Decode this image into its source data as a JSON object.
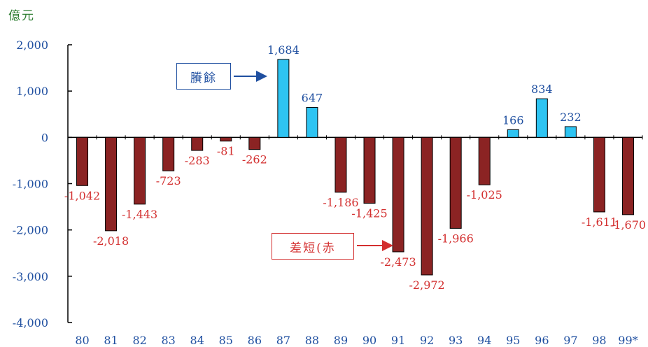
{
  "unit_label": "億元",
  "colors": {
    "positive_bar": "#2ec4f2",
    "negative_bar": "#8b2323",
    "positive_label": "#1f4fa0",
    "negative_label": "#d32f2f",
    "axis_tick": "#1f4fa0"
  },
  "callouts": {
    "surplus": "賸餘",
    "deficit": "差短(赤"
  },
  "chart_data": {
    "type": "bar",
    "title": "",
    "xlabel": "",
    "ylabel": "億元",
    "ylim": [
      -4000,
      2000
    ],
    "yticks": [
      2000,
      1000,
      0,
      -1000,
      -2000,
      -3000,
      -4000
    ],
    "ytick_labels": [
      "2,000",
      "1,000",
      "0",
      "-1,000",
      "-2,000",
      "-3,000",
      "-4,000"
    ],
    "grid": false,
    "categories": [
      "80",
      "81",
      "82",
      "83",
      "84",
      "85",
      "86",
      "87",
      "88",
      "89",
      "90",
      "91",
      "92",
      "93",
      "94",
      "95",
      "96",
      "97",
      "98",
      "99*"
    ],
    "values": [
      -1042,
      -2018,
      -1443,
      -723,
      -283,
      -81,
      -262,
      1684,
      647,
      -1186,
      -1425,
      -2473,
      -2972,
      -1966,
      -1025,
      166,
      834,
      232,
      -1611,
      -1670
    ],
    "data_labels": [
      "-1,042",
      "-2,018",
      "-1,443",
      "-723",
      "-283",
      "-81",
      "-262",
      "1,684",
      "647",
      "-1,186",
      "-1,425",
      "-2,473",
      "-2,972",
      "-1,966",
      "-1,025",
      "166",
      "834",
      "232",
      "-1,611",
      "-1,670"
    ]
  }
}
